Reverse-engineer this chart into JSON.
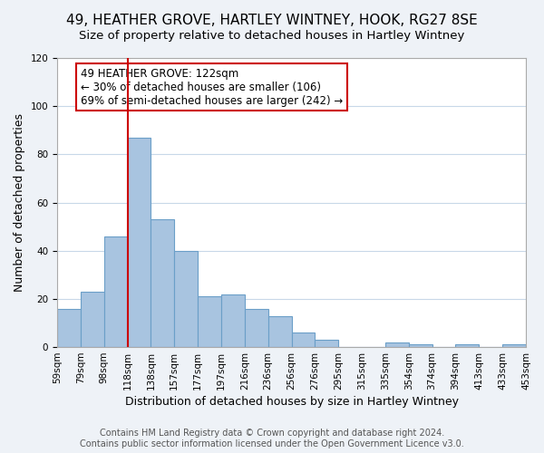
{
  "title": "49, HEATHER GROVE, HARTLEY WINTNEY, HOOK, RG27 8SE",
  "subtitle": "Size of property relative to detached houses in Hartley Wintney",
  "xlabel": "Distribution of detached houses by size in Hartley Wintney",
  "ylabel": "Number of detached properties",
  "bar_labels": [
    "59sqm",
    "79sqm",
    "98sqm",
    "118sqm",
    "138sqm",
    "157sqm",
    "177sqm",
    "197sqm",
    "216sqm",
    "236sqm",
    "256sqm",
    "276sqm",
    "295sqm",
    "315sqm",
    "335sqm",
    "354sqm",
    "374sqm",
    "394sqm",
    "413sqm",
    "433sqm",
    "453sqm"
  ],
  "bar_values": [
    16,
    23,
    46,
    87,
    53,
    40,
    21,
    22,
    16,
    13,
    6,
    3,
    0,
    0,
    2,
    1,
    0,
    1,
    0,
    1
  ],
  "bar_color": "#a8c4e0",
  "bar_edge_color": "#6b9fc8",
  "vline_x_index": 3,
  "vline_color": "#cc0000",
  "annotation_text": "49 HEATHER GROVE: 122sqm\n← 30% of detached houses are smaller (106)\n69% of semi-detached houses are larger (242) →",
  "annotation_box_color": "#ffffff",
  "annotation_box_edge_color": "#cc0000",
  "ylim": [
    0,
    120
  ],
  "yticks": [
    0,
    20,
    40,
    60,
    80,
    100,
    120
  ],
  "footer_text": "Contains HM Land Registry data © Crown copyright and database right 2024.\nContains public sector information licensed under the Open Government Licence v3.0.",
  "bg_color": "#eef2f7",
  "plot_bg_color": "#ffffff",
  "grid_color": "#c8d8e8",
  "title_fontsize": 11,
  "subtitle_fontsize": 9.5,
  "axis_label_fontsize": 9,
  "tick_fontsize": 7.5,
  "annotation_fontsize": 8.5,
  "footer_fontsize": 7
}
